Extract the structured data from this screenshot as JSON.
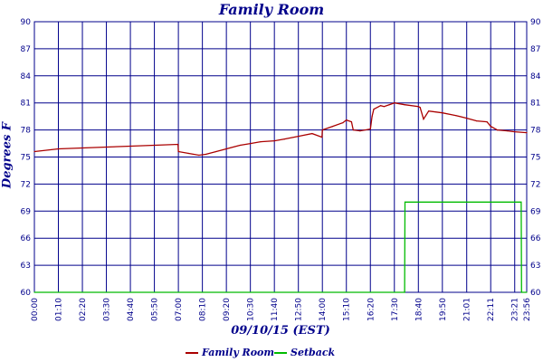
{
  "chart_data": {
    "type": "line",
    "title": "Family Room",
    "xlabel": "09/10/15 (EST)",
    "ylabel": "Degrees F",
    "ylim": [
      60,
      90
    ],
    "yticks": [
      60,
      63,
      66,
      69,
      72,
      75,
      78,
      81,
      84,
      87,
      90
    ],
    "xticks": [
      "00:00",
      "01:10",
      "02:20",
      "03:30",
      "04:40",
      "05:50",
      "07:00",
      "08:10",
      "09:20",
      "10:30",
      "11:40",
      "12:50",
      "14:00",
      "15:10",
      "16:20",
      "17:30",
      "18:40",
      "19:50",
      "21:01",
      "22:11",
      "23:21",
      "23:56"
    ],
    "grid": true,
    "legend_position": "bottom",
    "series": [
      {
        "name": "Family Room",
        "color": "#aa0000",
        "x": [
          "00:00",
          "01:10",
          "02:20",
          "03:30",
          "04:40",
          "05:50",
          "06:59",
          "07:00",
          "07:30",
          "08:00",
          "08:20",
          "08:50",
          "09:20",
          "10:00",
          "10:30",
          "11:00",
          "11:40",
          "12:10",
          "12:50",
          "13:30",
          "13:59",
          "14:00",
          "14:30",
          "15:00",
          "15:10",
          "15:25",
          "15:30",
          "15:50",
          "16:20",
          "16:25",
          "16:30",
          "16:50",
          "17:00",
          "17:15",
          "17:30",
          "18:00",
          "18:40",
          "18:45",
          "18:55",
          "19:10",
          "19:50",
          "20:30",
          "21:01",
          "21:30",
          "22:00",
          "22:11",
          "22:30",
          "23:00",
          "23:21",
          "23:56"
        ],
        "values": [
          75.6,
          75.9,
          76.0,
          76.1,
          76.2,
          76.3,
          76.4,
          75.6,
          75.4,
          75.2,
          75.3,
          75.6,
          75.9,
          76.3,
          76.5,
          76.7,
          76.8,
          77.0,
          77.3,
          77.6,
          77.2,
          78.0,
          78.4,
          78.8,
          79.1,
          78.9,
          78.0,
          77.9,
          78.1,
          79.5,
          80.3,
          80.7,
          80.6,
          80.8,
          81.0,
          80.8,
          80.6,
          80.5,
          79.2,
          80.1,
          79.9,
          79.6,
          79.3,
          79.0,
          78.9,
          78.4,
          78.0,
          77.9,
          77.8,
          77.7
        ]
      },
      {
        "name": "Setback",
        "color": "#00bb00",
        "x": [
          "00:00",
          "18:00",
          "18:01",
          "23:40",
          "23:41",
          "23:56"
        ],
        "values": [
          60,
          60,
          70,
          70,
          60,
          60
        ]
      }
    ]
  }
}
